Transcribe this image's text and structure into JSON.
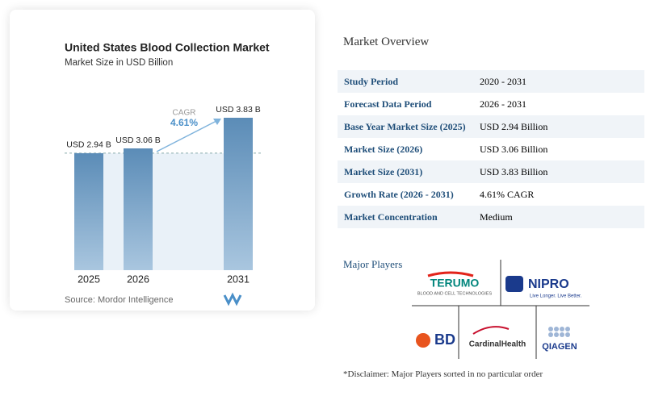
{
  "chart_data": {
    "type": "bar",
    "title": "United States Blood Collection Market",
    "subtitle": "Market Size in USD Billion",
    "categories": [
      "2025",
      "2026",
      "2031"
    ],
    "values": [
      2.94,
      3.06,
      3.83
    ],
    "value_labels": [
      "USD 2.94 B",
      "USD 3.06 B",
      "USD 3.83 B"
    ],
    "color": "#5b8cb7",
    "annotation": {
      "label": "CAGR",
      "value": "4.61%"
    },
    "source": "Source: Mordor Intelligence"
  },
  "overview": {
    "title": "Market Overview",
    "rows": [
      [
        "Study Period",
        "2020 - 2031"
      ],
      [
        "Forecast Data Period",
        "2026 - 2031"
      ],
      [
        "Base Year Market Size (2025)",
        "USD 2.94 Billion"
      ],
      [
        "Market Size (2026)",
        "USD 3.06 Billion"
      ],
      [
        "Market Size (2031)",
        "USD 3.83 Billion"
      ],
      [
        "Growth Rate (2026 - 2031)",
        "4.61% CAGR"
      ],
      [
        "Market Concentration",
        "Medium"
      ]
    ]
  },
  "players": {
    "title": "Major Players",
    "logos": {
      "terumo": "TERUMO",
      "terumo_sub": "BLOOD AND CELL TECHNOLOGIES",
      "nipro": "NIPRO",
      "nipro_sub": "Live Longer. Live Better.",
      "bd": "BD",
      "cardinal": "CardinalHealth",
      "qiagen": "QIAGEN"
    },
    "disclaimer": "*Disclaimer: Major Players sorted in no particular order"
  }
}
